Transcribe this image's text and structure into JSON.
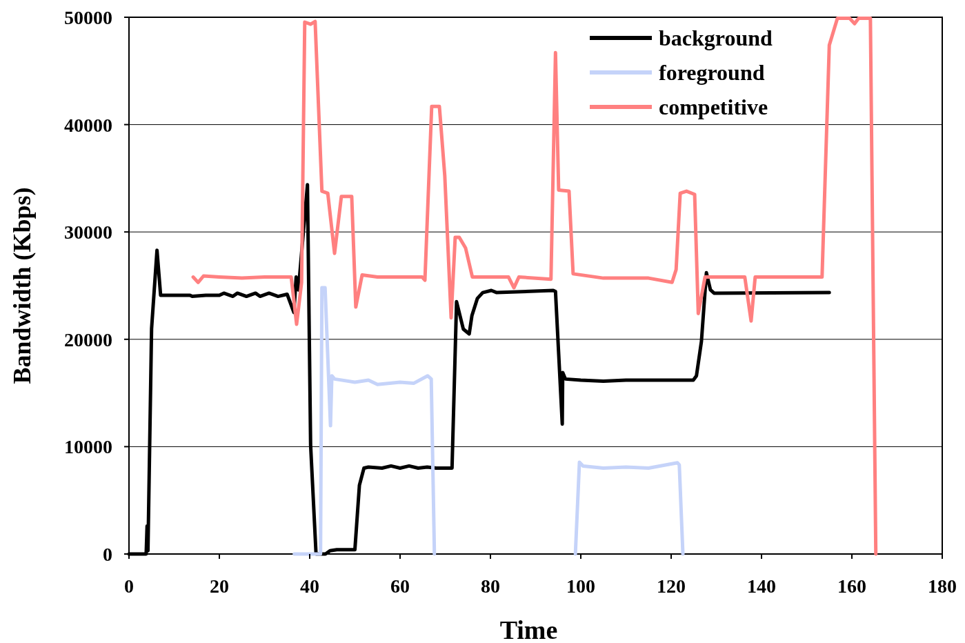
{
  "chart_data": {
    "type": "line",
    "xlabel": "Time",
    "ylabel": "Bandwidth (Kbps)",
    "xlim": [
      0,
      180
    ],
    "xticks": [
      0,
      20,
      40,
      60,
      80,
      100,
      120,
      140,
      160,
      180
    ],
    "ylim": [
      0,
      50000
    ],
    "yticks": [
      0,
      10000,
      20000,
      30000,
      40000,
      50000
    ],
    "grid": "y",
    "legend": "top right",
    "marker": "none",
    "line_style": "solid",
    "series": [
      {
        "name": "background",
        "color": "#000000",
        "x": [
          0,
          3.8,
          4,
          4.2,
          5,
          6.2,
          7,
          13.5,
          14,
          17,
          20,
          21,
          23,
          24,
          26,
          28,
          29,
          31,
          33,
          35,
          36.5,
          37,
          37.5,
          39.5,
          40.2,
          41.4,
          43.5,
          44.5,
          46,
          50,
          51,
          52,
          53,
          56,
          58,
          60,
          62,
          64,
          66,
          68,
          71.5,
          72.5,
          74,
          75.3,
          75.9,
          77.1,
          78.3,
          80.2,
          81.4,
          93.9,
          94.4,
          95.9,
          96,
          96.6,
          100,
          105,
          110,
          115,
          120,
          123,
          124.9,
          125.6,
          126.7,
          127.8,
          128.7,
          129.5,
          155
        ],
        "values": [
          0,
          0,
          2600,
          300,
          21000,
          28300,
          24100,
          24100,
          24000,
          24100,
          24100,
          24300,
          24000,
          24300,
          24000,
          24300,
          24000,
          24300,
          24000,
          24200,
          22500,
          25800,
          24600,
          34400,
          10150,
          0,
          0,
          300,
          400,
          400,
          6400,
          8000,
          8100,
          8000,
          8200,
          8000,
          8200,
          8000,
          8100,
          8000,
          8000,
          23500,
          20950,
          20500,
          22200,
          23800,
          24350,
          24550,
          24350,
          24550,
          24450,
          12100,
          16900,
          16300,
          16200,
          16100,
          16200,
          16200,
          16200,
          16200,
          16200,
          16600,
          19800,
          26200,
          24600,
          24300,
          24350
        ]
      },
      {
        "name": "foreground",
        "color": "#c5d3f9",
        "x": [
          36.6,
          42.4,
          42.7,
          43.4,
          44.6,
          44.9,
          45.5,
          50,
          53,
          55,
          60,
          63,
          66.1,
          66.9,
          67.6,
          80,
          98.8,
          99.7,
          100.5,
          105,
          110,
          115,
          121.4,
          121.8,
          122.6
        ],
        "values": [
          0,
          0,
          24800,
          24800,
          11950,
          16600,
          16300,
          16000,
          16200,
          15800,
          16000,
          15900,
          16600,
          16300,
          0,
          null,
          0,
          8550,
          8200,
          8000,
          8100,
          8000,
          8500,
          8300,
          0
        ]
      },
      {
        "name": "competitive",
        "color": "#ff8080",
        "x": [
          14.2,
          15.3,
          16.5,
          20,
          25,
          30,
          35.9,
          37.1,
          38.2,
          38.9,
          40.2,
          41.2,
          42.7,
          44,
          45.5,
          47,
          49.3,
          50.2,
          51.6,
          55,
          60,
          64.9,
          65.5,
          67,
          68.7,
          69.9,
          71.3,
          72.2,
          73.1,
          74.5,
          76,
          80,
          84,
          85.2,
          86.3,
          93.4,
          94.4,
          95.1,
          97.4,
          98.3,
          105,
          115,
          120.2,
          121.1,
          122,
          123.4,
          125.2,
          126,
          127.5,
          136.3,
          137.7,
          138.6,
          153.4,
          155,
          156.8,
          159.5,
          160.6,
          161.5,
          164.1,
          165.3
        ],
        "values": [
          25800,
          25300,
          25900,
          25800,
          25700,
          25800,
          25800,
          21400,
          25300,
          49550,
          49350,
          49600,
          33800,
          33600,
          28000,
          33300,
          33300,
          23000,
          26000,
          25800,
          25800,
          25800,
          25500,
          41700,
          41700,
          35200,
          22000,
          29500,
          29500,
          28500,
          25800,
          25800,
          25800,
          24800,
          25800,
          25600,
          46700,
          33900,
          33800,
          26100,
          25700,
          25700,
          25300,
          26500,
          33600,
          33800,
          33500,
          22400,
          25800,
          25800,
          21700,
          25800,
          25800,
          47400,
          49900,
          49900,
          49400,
          49900,
          49900,
          0
        ]
      }
    ]
  }
}
